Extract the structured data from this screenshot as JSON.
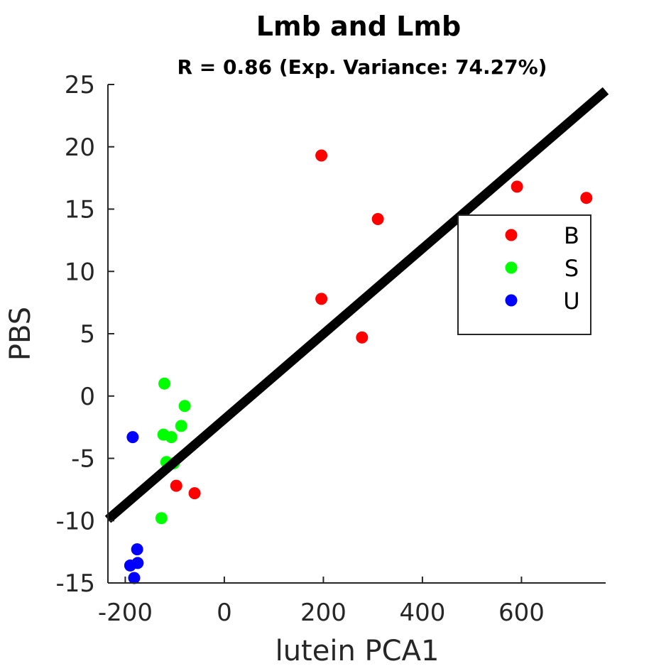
{
  "chart_data": {
    "type": "scatter",
    "title": "Lmb and Lmb",
    "subtitle": "R = 0.86 (Exp. Variance: 74.27%)",
    "xlabel": "lutein PCA1",
    "ylabel": "PBS",
    "xlim": [
      -235,
      770
    ],
    "ylim": [
      -15,
      25
    ],
    "xticks": [
      -200,
      0,
      200,
      400,
      600
    ],
    "yticks": [
      -15,
      -10,
      -5,
      0,
      5,
      10,
      15,
      20,
      25
    ],
    "legend_position": "right",
    "series": [
      {
        "name": "B",
        "color": "#ff0000",
        "points": [
          [
            196,
            19.3
          ],
          [
            310,
            14.2
          ],
          [
            591,
            16.8
          ],
          [
            731,
            15.9
          ],
          [
            196,
            7.8
          ],
          [
            278,
            4.7
          ],
          [
            -97,
            -7.2
          ],
          [
            -60,
            -7.8
          ]
        ]
      },
      {
        "name": "S",
        "color": "#00ff00",
        "points": [
          [
            -121,
            1.0
          ],
          [
            -80,
            -0.8
          ],
          [
            -87,
            -2.4
          ],
          [
            -123,
            -3.1
          ],
          [
            -107,
            -3.3
          ],
          [
            -117,
            -5.3
          ],
          [
            -102,
            -5.4
          ],
          [
            -127,
            -9.8
          ]
        ]
      },
      {
        "name": "U",
        "color": "#0000ff",
        "points": [
          [
            -185,
            -3.3
          ],
          [
            -176,
            -12.3
          ],
          [
            -175,
            -13.4
          ],
          [
            -190,
            -13.6
          ],
          [
            -182,
            -14.6
          ]
        ]
      }
    ],
    "fit_line": {
      "x": [
        -235,
        770
      ],
      "y": [
        -9.9,
        24.5
      ],
      "color": "#000000"
    }
  }
}
